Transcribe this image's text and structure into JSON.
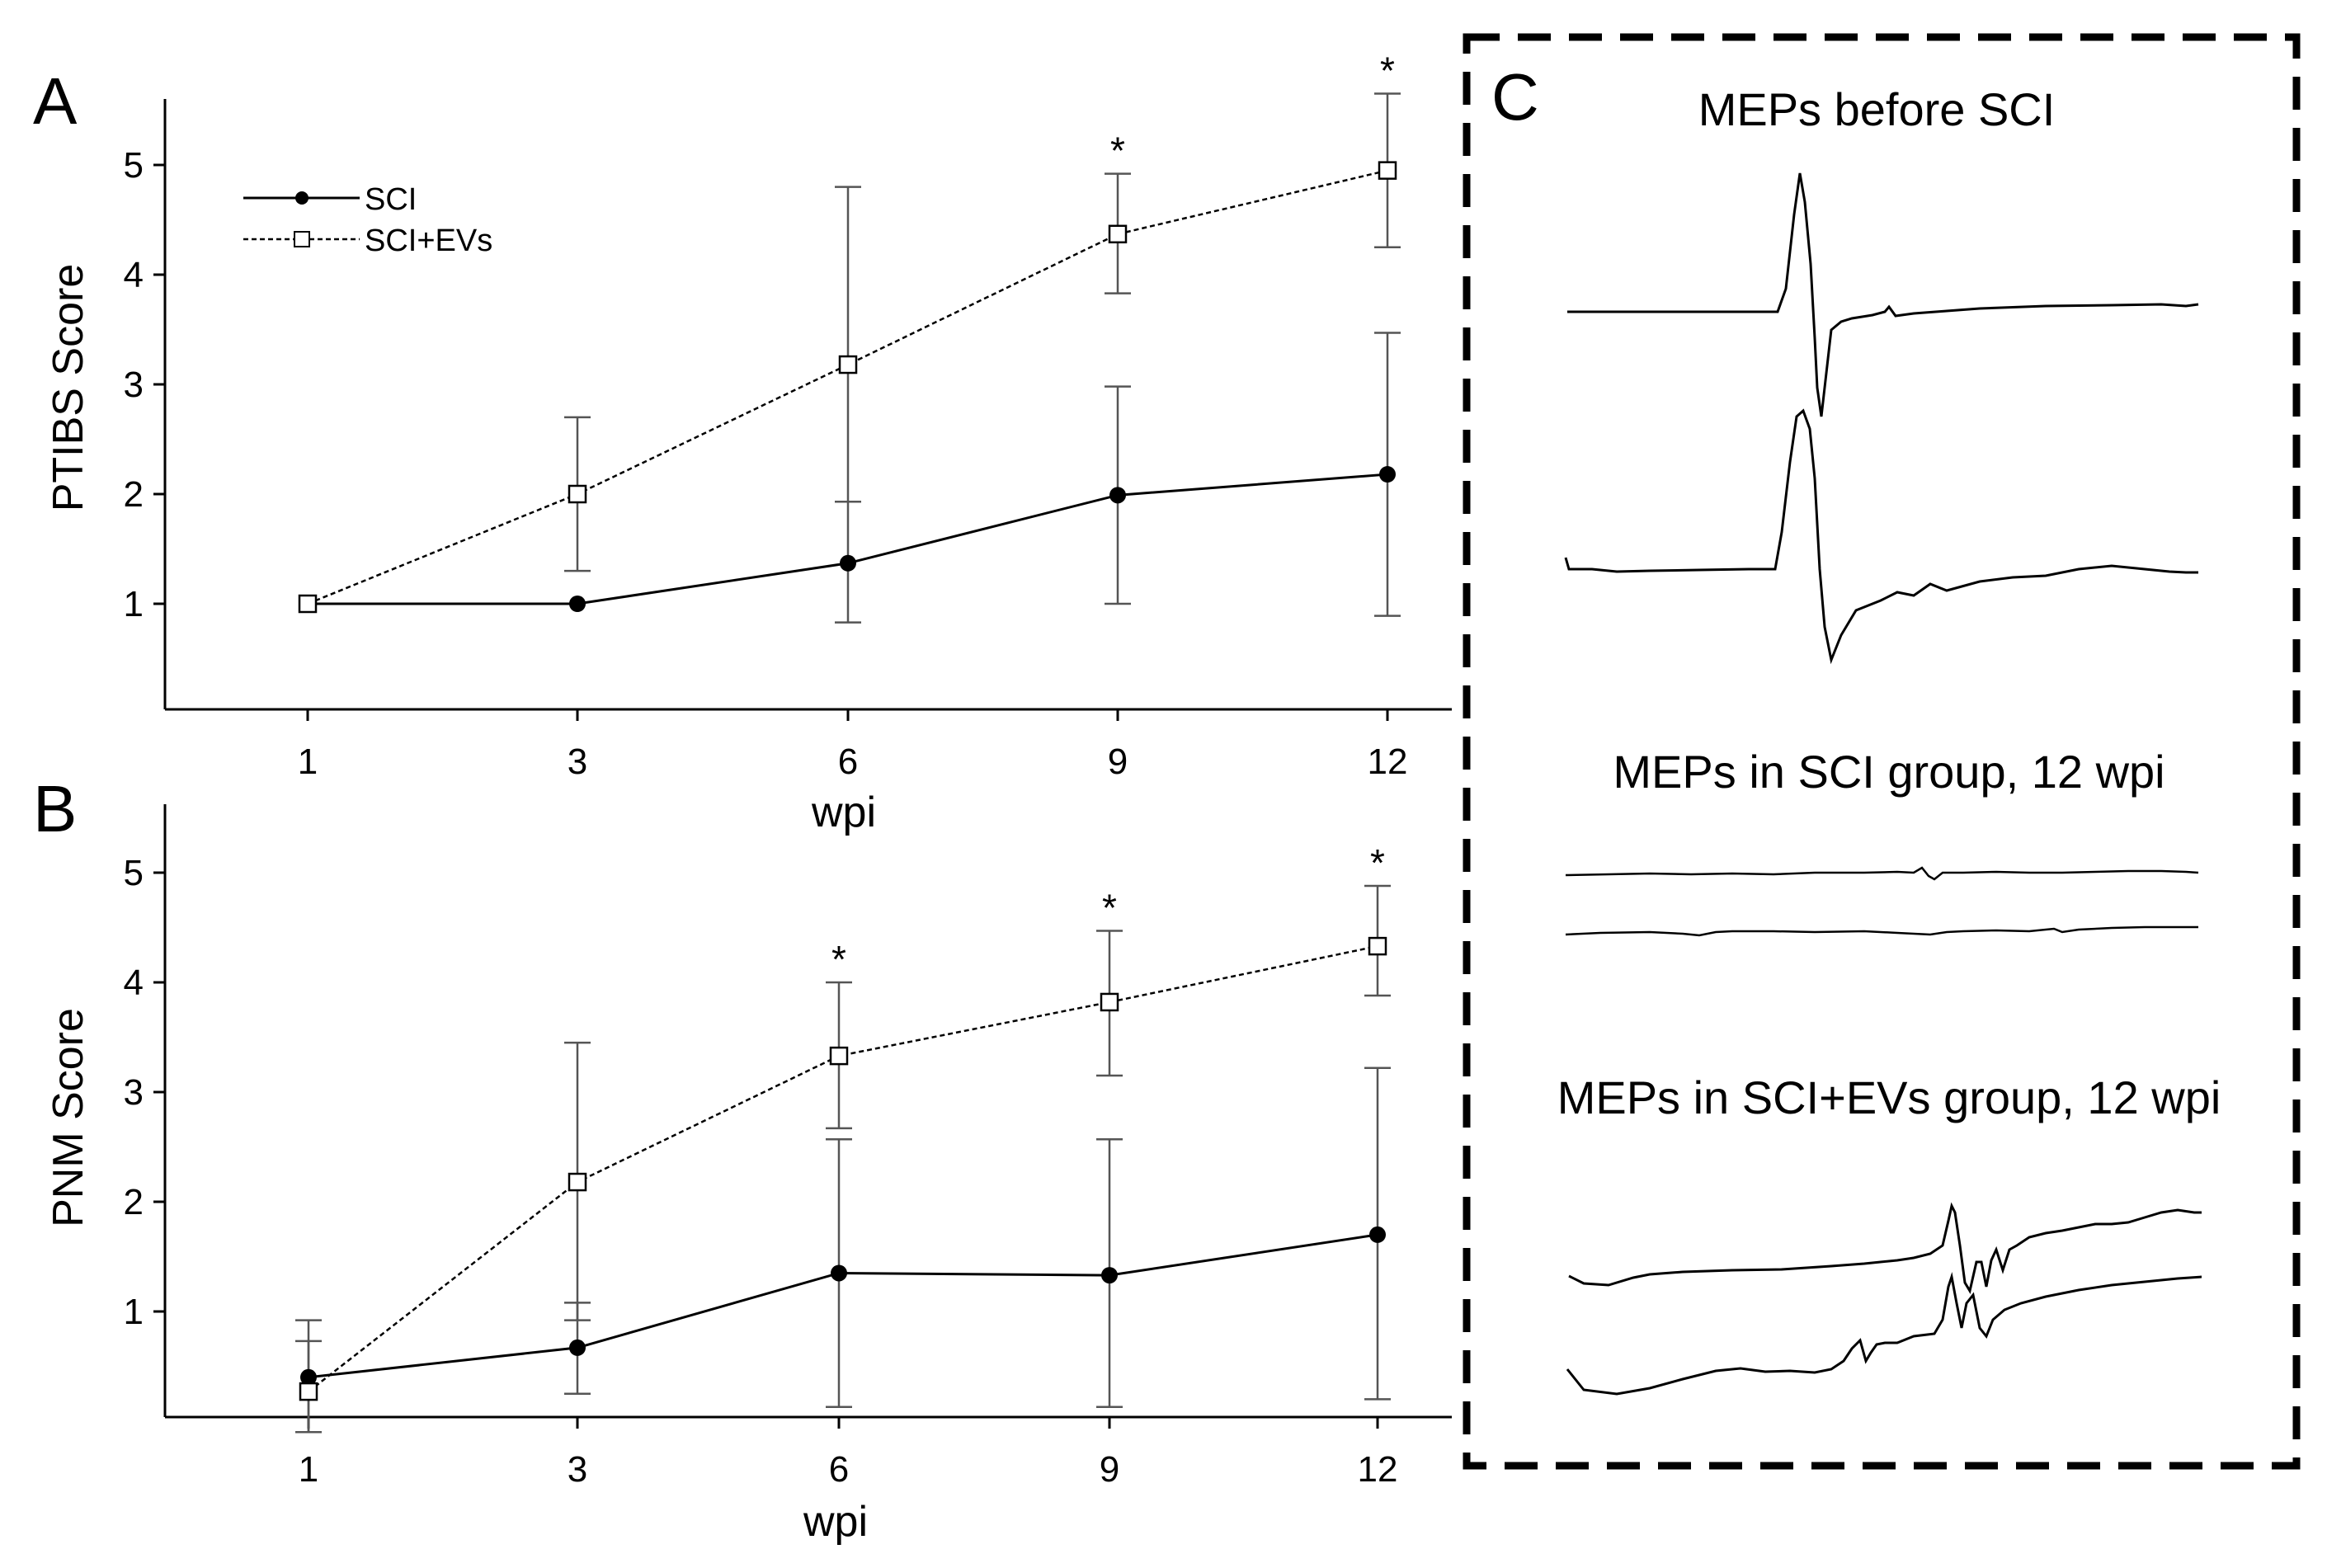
{
  "figure": {
    "panels": [
      {
        "label": "A"
      },
      {
        "label": "B"
      },
      {
        "label": "C"
      }
    ]
  },
  "legend": {
    "entries": [
      {
        "label": "SCI",
        "style": "solid",
        "marker": "filled-circle"
      },
      {
        "label": "SCI+EVs",
        "style": "dashed",
        "marker": "open-square"
      }
    ]
  },
  "chart_data": [
    {
      "panel": "A",
      "type": "line",
      "title": "",
      "xlabel": "wpi",
      "ylabel": "PTIBS Score",
      "x": [
        1,
        3,
        6,
        9,
        12
      ],
      "xticks": [
        "1",
        "3",
        "6",
        "9",
        "12"
      ],
      "yticks": [
        "1",
        "2",
        "3",
        "4",
        "5"
      ],
      "ylim": [
        0,
        5.6
      ],
      "series": [
        {
          "name": "SCI",
          "values": [
            1.0,
            1.0,
            1.37,
            1.99,
            2.18
          ],
          "err_low": [
            1.0,
            1.0,
            0.83,
            1.0,
            0.89
          ],
          "err_high": [
            1.0,
            1.0,
            1.93,
            2.98,
            3.47
          ]
        },
        {
          "name": "SCI+EVs",
          "values": [
            1.0,
            2.0,
            3.18,
            4.37,
            4.95
          ],
          "err_low": [
            1.0,
            1.3,
            1.93,
            3.83,
            4.25
          ],
          "err_high": [
            1.0,
            2.7,
            4.8,
            4.92,
            5.65
          ]
        }
      ],
      "significance": [
        {
          "x": 9,
          "label": "*"
        },
        {
          "x": 12,
          "label": "*"
        }
      ]
    },
    {
      "panel": "B",
      "type": "line",
      "title": "",
      "xlabel": "wpi",
      "ylabel": "PNM Score",
      "x": [
        1,
        3,
        6,
        9,
        12
      ],
      "xticks": [
        "1",
        "3",
        "6",
        "9",
        "12"
      ],
      "yticks": [
        "1",
        "2",
        "3",
        "4",
        "5"
      ],
      "ylim": [
        0,
        5.6
      ],
      "series": [
        {
          "name": "SCI",
          "values": [
            0.4,
            0.67,
            1.35,
            1.33,
            1.7
          ],
          "err_low": [
            -0.1,
            0.25,
            0.13,
            0.13,
            0.2
          ],
          "err_high": [
            0.92,
            1.08,
            2.57,
            2.57,
            3.22
          ]
        },
        {
          "name": "SCI+EVs",
          "values": [
            0.27,
            2.18,
            3.33,
            3.82,
            4.33
          ],
          "err_low": [
            -0.1,
            0.92,
            2.67,
            3.15,
            3.88
          ],
          "err_high": [
            0.73,
            3.45,
            4.0,
            4.47,
            4.88
          ]
        }
      ],
      "significance": [
        {
          "x": 6,
          "label": "*"
        },
        {
          "x": 9,
          "label": "*"
        },
        {
          "x": 12,
          "label": "*"
        }
      ]
    }
  ],
  "mep_panel": {
    "captions": {
      "before": "MEPs before SCI",
      "sci": "MEPs in SCI group, 12 wpi",
      "evs": "MEPs in SCI+EVs group, 12 wpi"
    }
  }
}
